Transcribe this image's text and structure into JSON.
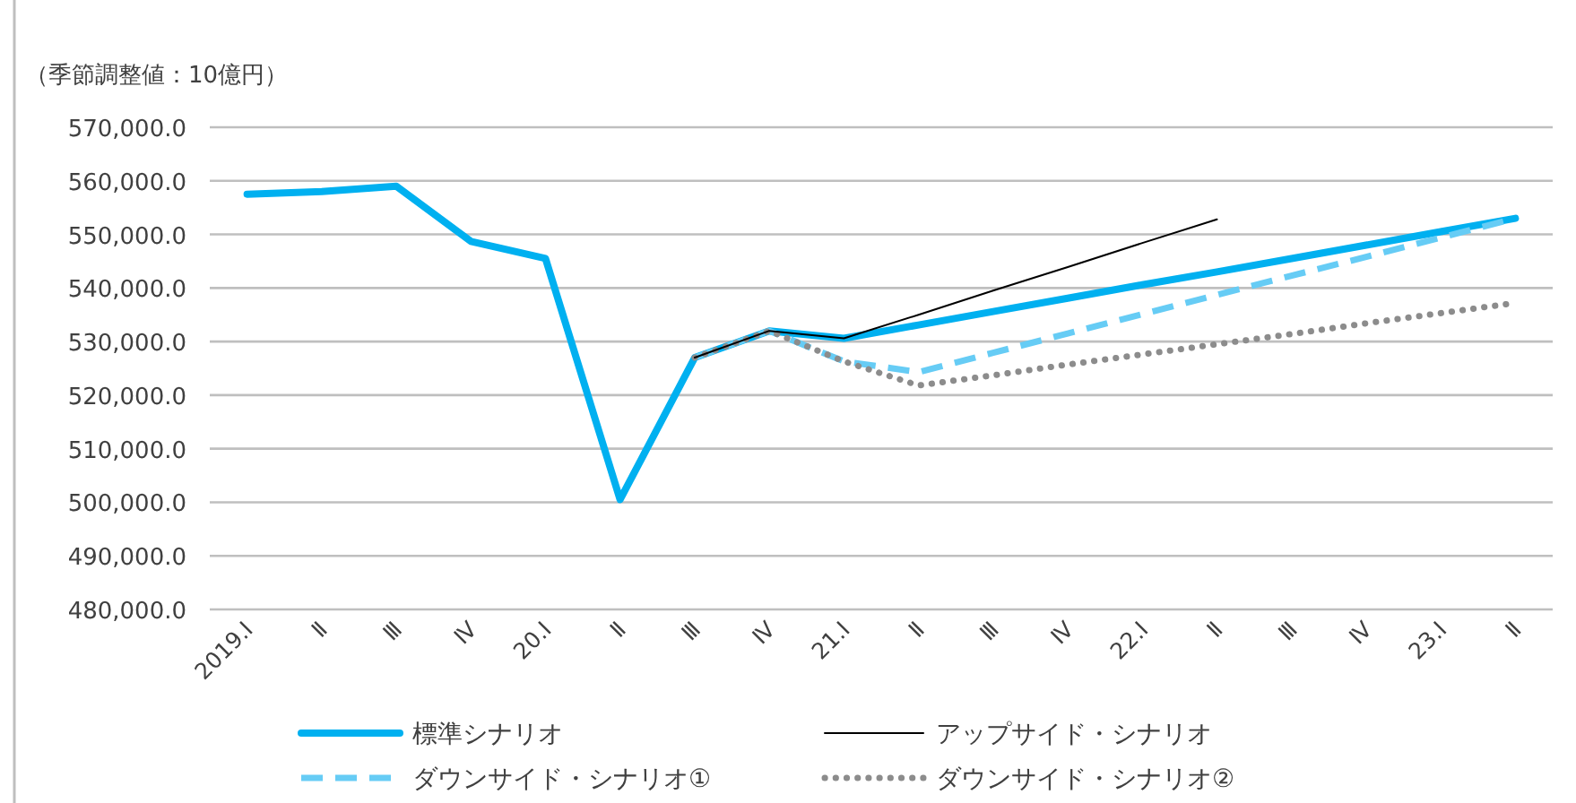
{
  "chart_data": {
    "type": "line",
    "ylabel": "（季節調整値：10億円）",
    "categories": [
      "2019.Ⅰ",
      "Ⅱ",
      "Ⅲ",
      "Ⅳ",
      "20.Ⅰ",
      "Ⅱ",
      "Ⅲ",
      "Ⅳ",
      "21.Ⅰ",
      "Ⅱ",
      "Ⅲ",
      "Ⅳ",
      "22.Ⅰ",
      "Ⅱ",
      "Ⅲ",
      "Ⅳ",
      "23.Ⅰ",
      "Ⅱ"
    ],
    "series": [
      {
        "name": "標準シナリオ",
        "color": "#00b0f0",
        "line_style": "solid",
        "values": [
          557500,
          558000,
          559000,
          548700,
          545500,
          500500,
          527000,
          532000,
          530600,
          533100,
          535600,
          538100,
          540600,
          543000,
          545500,
          548000,
          550500,
          553000
        ]
      },
      {
        "name": "アップサイド・シナリオ",
        "color": "#000000",
        "line_style": "solid",
        "values": [
          null,
          null,
          null,
          null,
          null,
          null,
          527000,
          532000,
          530600,
          535000,
          539500,
          543900,
          548400,
          552800,
          null,
          null,
          null,
          null
        ]
      },
      {
        "name": "ダウンサイド・シナリオ①",
        "color": "#66ccf5",
        "line_style": "dashed",
        "values": [
          null,
          null,
          null,
          null,
          null,
          null,
          527000,
          532000,
          526300,
          524300,
          527900,
          531500,
          535100,
          538700,
          542300,
          545800,
          549400,
          553000
        ]
      },
      {
        "name": "ダウンサイド・シナリオ②",
        "color": "#8c8c8c",
        "line_style": "dotted",
        "values": [
          null,
          null,
          null,
          null,
          null,
          null,
          527000,
          532000,
          526300,
          521800,
          523700,
          525700,
          527600,
          529500,
          531400,
          533400,
          535300,
          537200
        ]
      }
    ],
    "ylim": [
      480000,
      570000
    ],
    "yticks": [
      {
        "value": 480000,
        "label": "480,000.0"
      },
      {
        "value": 490000,
        "label": "490,000.0"
      },
      {
        "value": 500000,
        "label": "500,000.0"
      },
      {
        "value": 510000,
        "label": "510,000.0"
      },
      {
        "value": 520000,
        "label": "520,000.0"
      },
      {
        "value": 530000,
        "label": "530,000.0"
      },
      {
        "value": 540000,
        "label": "540,000.0"
      },
      {
        "value": 550000,
        "label": "550,000.0"
      },
      {
        "value": 560000,
        "label": "560,000.0"
      },
      {
        "value": 570000,
        "label": "570,000.0"
      }
    ],
    "grid": "y",
    "legend": "bottom",
    "marker": "none"
  }
}
